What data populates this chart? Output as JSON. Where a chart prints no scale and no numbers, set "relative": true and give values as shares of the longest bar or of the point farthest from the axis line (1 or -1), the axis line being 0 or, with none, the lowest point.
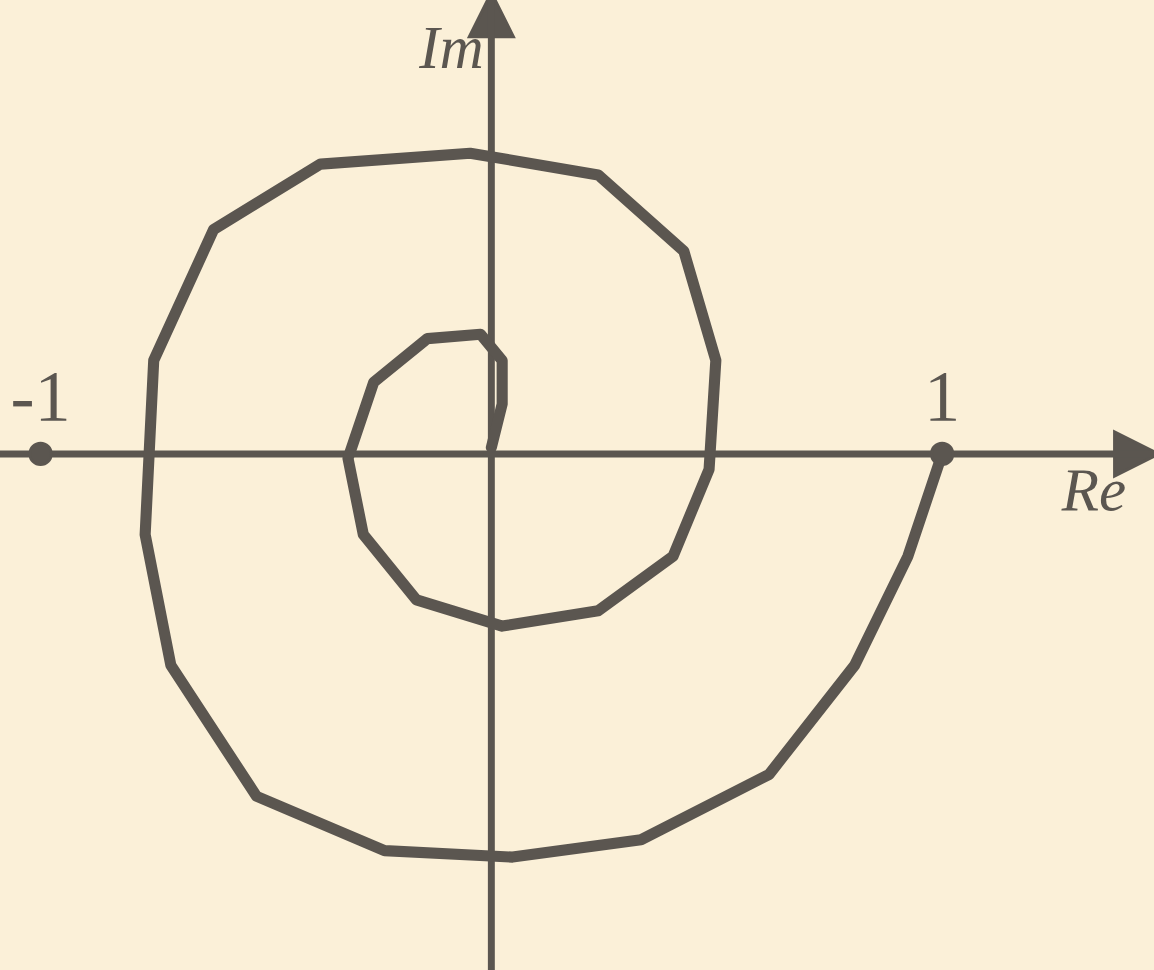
{
  "chart_data": {
    "type": "line",
    "xlabel": "Re",
    "ylabel": "Im",
    "relative": true,
    "tick_labels": "x",
    "grid": false,
    "legend": false,
    "xlim": [
      -1.09,
      1.47
    ],
    "xticks": [
      -1,
      1
    ],
    "series": [
      {
        "color": "#5b5650",
        "marker": "none",
        "line_style": "solid",
        "x": [
          1.0,
          0.924,
          0.806,
          0.616,
          0.332,
          0.047,
          -0.237,
          -0.521,
          -0.711,
          -0.768,
          -0.749,
          -0.616,
          -0.379,
          -0.047,
          0.237,
          0.427,
          0.498,
          0.483,
          0.403,
          0.237,
          0.024,
          -0.166,
          -0.284,
          -0.318,
          -0.261,
          -0.142,
          -0.024,
          0.024,
          0.024,
          0.0
        ],
        "values": [
          0,
          -0.254,
          -0.524,
          -0.795,
          -0.957,
          -1.0,
          -0.984,
          -0.849,
          -0.524,
          -0.2,
          0.232,
          0.557,
          0.719,
          0.746,
          0.692,
          0.503,
          0.232,
          -0.038,
          -0.254,
          -0.389,
          -0.427,
          -0.362,
          -0.2,
          -0.011,
          0.178,
          0.286,
          0.297,
          0.232,
          0.124,
          0.016
        ]
      },
      {
        "type": "scatter",
        "color": "#5b5650",
        "marker": "circle",
        "x": [
          -1,
          1
        ],
        "values": [
          0,
          0
        ]
      }
    ]
  }
}
